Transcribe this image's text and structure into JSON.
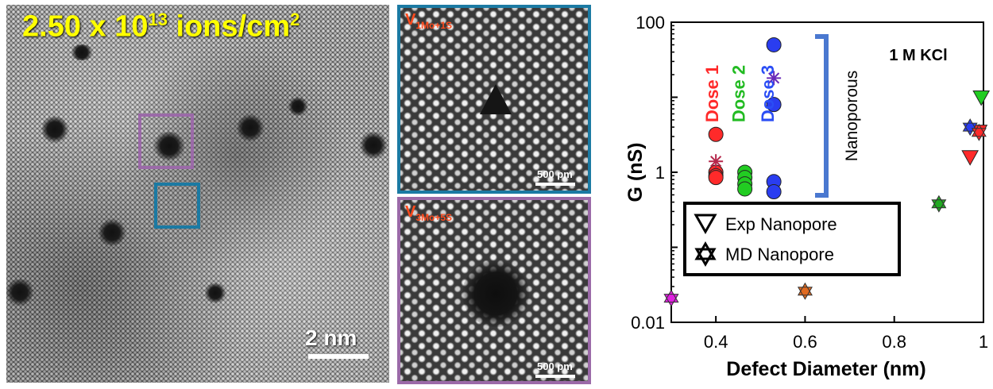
{
  "stem": {
    "dose_text": "2.50 x 10",
    "dose_exp": "13",
    "dose_unit": " ions/cm",
    "dose_unit_exp": "2",
    "scale_text": "2 nm",
    "box_colors": {
      "purple": "#9b6aa8",
      "blue": "#1b7aa3"
    }
  },
  "insets": [
    {
      "label_main": "V",
      "label_sub": "1Mo+1S",
      "scale_text": "500 pm",
      "border_color": "#1b7aa3"
    },
    {
      "label_main": "V",
      "label_sub": "3Mo+5S",
      "scale_text": "500 pm",
      "border_color": "#9b6aa8"
    }
  ],
  "chart_data": {
    "type": "scatter",
    "xlabel": "Defect Diameter (nm)",
    "ylabel": "G (nS)",
    "y_scale": "log",
    "xlim": [
      0.3,
      1.0
    ],
    "ylim": [
      0.01,
      100
    ],
    "x_ticks": [
      "0.4",
      "0.6",
      "0.8",
      "1"
    ],
    "x_tick_values": [
      0.4,
      0.6,
      0.8,
      1.0
    ],
    "y_ticks": [
      "0.01",
      "1",
      "100"
    ],
    "y_tick_values": [
      0.01,
      1,
      100
    ],
    "annotation": "1 M KCl",
    "bracket_label": "Nanoporous",
    "dose_labels": [
      {
        "text": "Dose 1",
        "color": "#ff2a2a",
        "x": 0.405
      },
      {
        "text": "Dose 2",
        "color": "#22bb22",
        "x": 0.465
      },
      {
        "text": "Dose 3",
        "color": "#2a4df5",
        "x": 0.53
      }
    ],
    "legend": [
      {
        "label": "Exp Nanopore",
        "marker": "triangle-down"
      },
      {
        "label": "MD Nanopore",
        "marker": "star6"
      }
    ],
    "series": [
      {
        "color": "#ff2a2a",
        "marker": "circle",
        "points": [
          [
            0.4,
            3.2
          ],
          [
            0.4,
            1.0
          ],
          [
            0.4,
            0.9
          ],
          [
            0.4,
            0.85
          ]
        ]
      },
      {
        "color": "#b5264a",
        "marker": "asterisk",
        "points": [
          [
            0.4,
            1.4
          ]
        ]
      },
      {
        "color": "#22cc22",
        "marker": "circle",
        "points": [
          [
            0.465,
            1.0
          ],
          [
            0.465,
            0.85
          ],
          [
            0.465,
            0.7
          ],
          [
            0.465,
            0.6
          ]
        ]
      },
      {
        "color": "#2a3df0",
        "marker": "circle",
        "points": [
          [
            0.53,
            50
          ],
          [
            0.53,
            8.0
          ],
          [
            0.53,
            0.75
          ],
          [
            0.53,
            0.55
          ]
        ]
      },
      {
        "color": "#6a2ab8",
        "marker": "asterisk",
        "points": [
          [
            0.53,
            18
          ]
        ]
      },
      {
        "color": "#ff2a2a",
        "marker": "triangle-down",
        "points": [
          [
            0.97,
            1.6
          ],
          [
            0.99,
            3.5
          ]
        ]
      },
      {
        "color": "#22cc22",
        "marker": "triangle-down",
        "points": [
          [
            0.995,
            10
          ]
        ]
      },
      {
        "color": "#2a3df0",
        "marker": "star6",
        "points": [
          [
            0.97,
            4.0
          ]
        ]
      },
      {
        "color": "#ff2a2a",
        "marker": "star6",
        "points": [
          [
            0.99,
            3.4
          ]
        ]
      },
      {
        "color": "#22aa22",
        "marker": "star6",
        "points": [
          [
            0.9,
            0.38
          ]
        ]
      },
      {
        "color": "#e06a20",
        "marker": "star6",
        "points": [
          [
            0.6,
            0.026
          ]
        ]
      },
      {
        "color": "#e020e0",
        "marker": "star6",
        "points": [
          [
            0.3,
            0.021
          ]
        ]
      }
    ]
  }
}
